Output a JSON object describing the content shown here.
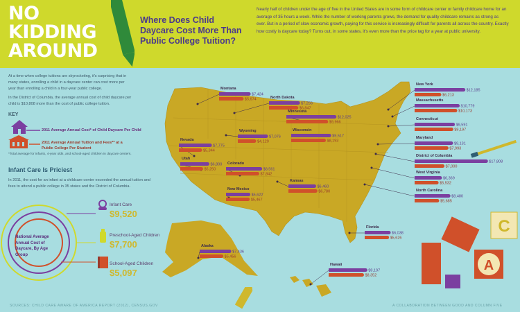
{
  "header": {
    "headline": [
      "NO",
      "KIDDING",
      "AROUND"
    ],
    "question": "Where Does Child Daycare Cost More Than Public College Tuition?",
    "intro": "Nearly half of children under the age of five in the United States are in some form of childcare center or family childcare home for an average of 35 hours a week. While the number of working parents grows, the demand for quality childcare remains as strong as ever. But in a period of slow economic growth, paying for this service is increasingly difficult for parents all across the country. Exactly how costly is daycare today? Turns out, in some states, it's even more than the price tag for a year at public university."
  },
  "sidebar": {
    "para1": "At a time when college tuitions are skyrocketing, it's surprising that in many states, enrolling a child in a daycare center can cost more per year than enrolling a child in a four-year public college.",
    "para2": "In the District of Columbia, the average annual cost of child daycare per child is $10,808 more than the cost of public college tuition.",
    "key_title": "KEY",
    "key_daycare": "2011 Average Annual Cost* of Child Daycare Per Child",
    "key_college": "2011 Average Annual Tuition and Fees** at a Public College Per Student",
    "key_note": "*Total average for infants, 4-year olds, and school-aged children in daycare centers.",
    "infant_title": "Infant Care Is Priciest",
    "infant_text": "In 2011, the cost for an infant at a childcare center exceeded the annual tuition and fees to attend a public college in 35 states and the District of Columbia.",
    "national_label": "National Average Annual Cost of Daycare, By Age Group"
  },
  "age_groups": [
    {
      "label": "Infant Care",
      "value": "$9,520"
    },
    {
      "label": "Preschool-Aged Children",
      "value": "$7,700"
    },
    {
      "label": "School-Aged Children",
      "value": "$5,097"
    }
  ],
  "footer": {
    "sources": "SOURCES: CHILD CARE AWARE OF AMERICA REPORT (2012), CENSUS.GOV",
    "collab": "A COLLABORATION BETWEEN GOOD AND COLUMN FIVE"
  },
  "colors": {
    "daycare": "#7b3fa0",
    "college": "#d0502a",
    "map": "#c9a825",
    "header": "#cfd92c",
    "background": "#a8dde0"
  },
  "blocks": [
    "C",
    "A"
  ],
  "chart_data": {
    "type": "bar",
    "title": "Where Does Child Daycare Cost More Than Public College Tuition?",
    "series": [
      {
        "name": "2011 Average Annual Cost* of Child Daycare Per Child",
        "values": [
          7424,
          7256,
          12025,
          9517,
          7775,
          7076,
          6800,
          8561,
          6460,
          5622,
          7436,
          9197,
          6038,
          12185,
          10779,
          9591,
          9131,
          17808,
          6369,
          8480
        ]
      },
      {
        "name": "2011 Average Annual Tuition and Fees** at a Public College Per Student",
        "values": [
          5674,
          6847,
          9966,
          8193,
          5344,
          4129,
          5250,
          7842,
          6780,
          5467,
          5456,
          8352,
          5626,
          6213,
          10173,
          9197,
          7993,
          7000,
          5532,
          5685
        ]
      }
    ],
    "categories": [
      "Montana",
      "North Dakota",
      "Minnesota",
      "Wisconsin",
      "Nevada",
      "Wyoming",
      "Utah",
      "Colorado",
      "Kansas",
      "New Mexico",
      "Alaska",
      "Hawaii",
      "Florida",
      "New York",
      "Massachusetts",
      "Connecticut",
      "Maryland",
      "District of Columbia",
      "West Virginia",
      "North Carolina"
    ],
    "daycare_labels": [
      "$7,424",
      "$7,256",
      "$12,025",
      "$9,517",
      "$7,775",
      "$7,076",
      "$6,800",
      "$8,561",
      "$6,460",
      "$5,622",
      "$7,436",
      "$9,197",
      "$6,038",
      "$12,185",
      "$10,779",
      "$9,591",
      "$9,131",
      "$17,808",
      "$6,369",
      "$8,480"
    ],
    "college_labels": [
      "$5,674",
      "$6,847",
      "$9,966",
      "$8,193",
      "$5,344",
      "$4,129",
      "$5,250",
      "$7,842",
      "$6,780",
      "$5,467",
      "$5,456",
      "$8,352",
      "$5,626",
      "$6,213",
      "$10,173",
      "$9,197",
      "$7,993",
      "$7,000",
      "$5,532",
      "$5,685"
    ]
  }
}
